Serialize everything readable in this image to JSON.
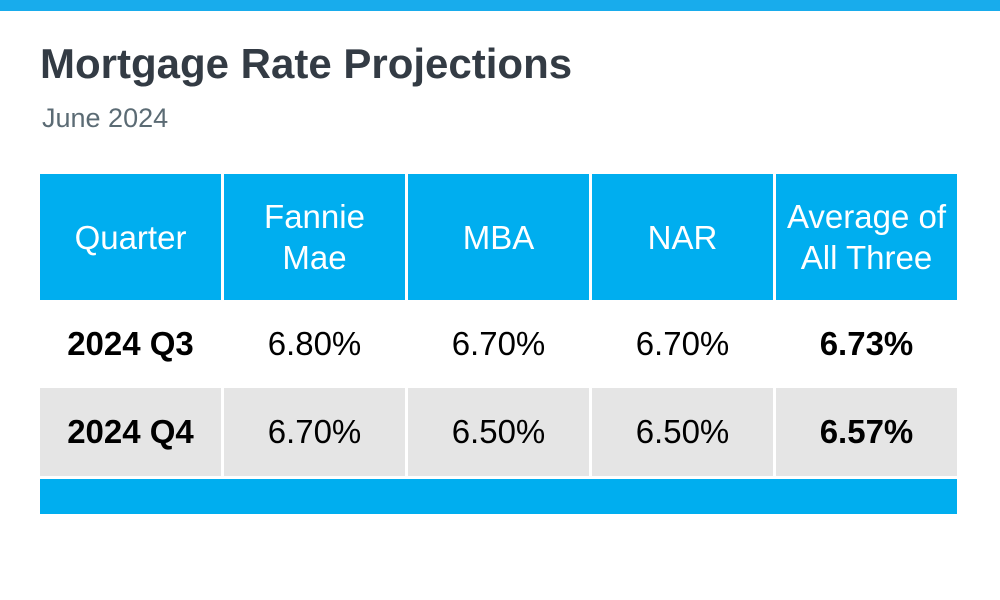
{
  "page": {
    "title": "Mortgage Rate Projections",
    "subtitle": "June 2024"
  },
  "colors": {
    "top_bar_blue": "#18ACEC",
    "table_accent_blue": "#00AEEF",
    "alt_row_gray": "#E5E5E5",
    "title_text": "#333B44",
    "subtitle_text": "#5B6B74",
    "header_text": "#FFFFFF",
    "body_text": "#000000"
  },
  "chart_data": {
    "type": "table",
    "title": "Mortgage Rate Projections",
    "subtitle": "June 2024",
    "columns": [
      "Quarter",
      "Fannie Mae",
      "MBA",
      "NAR",
      "Average of All Three"
    ],
    "rows": [
      [
        "2024 Q3",
        "6.80%",
        "6.70%",
        "6.70%",
        "6.73%"
      ],
      [
        "2024 Q4",
        "6.70%",
        "6.50%",
        "6.50%",
        "6.57%"
      ]
    ],
    "categories": [
      "2024 Q3",
      "2024 Q4"
    ],
    "series": [
      {
        "name": "Fannie Mae",
        "values": [
          6.8,
          6.7
        ]
      },
      {
        "name": "MBA",
        "values": [
          6.7,
          6.5
        ]
      },
      {
        "name": "NAR",
        "values": [
          6.7,
          6.5
        ]
      },
      {
        "name": "Average of All Three",
        "values": [
          6.73,
          6.57
        ]
      }
    ],
    "units": "percent",
    "layout_hints": {
      "header_background": "#00AEEF",
      "alternating_rows": true,
      "grid": "white column dividers",
      "footer_accent_bar": true
    }
  }
}
